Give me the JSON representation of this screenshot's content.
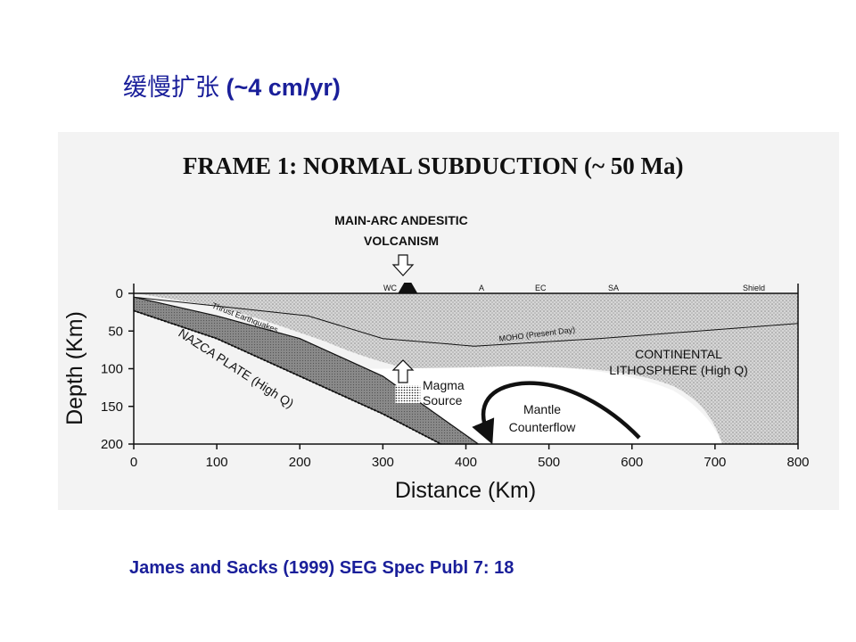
{
  "slide": {
    "title_cjk": "缓慢扩张",
    "title_rate": "(~4 cm/yr)",
    "citation": "James and Sacks (1999) SEG Spec Publ 7: 18",
    "text_color": "#1a1f9a"
  },
  "figure": {
    "frame_title": "FRAME 1:  NORMAL SUBDUCTION (~ 50 Ma)",
    "volcanism_line1": "MAIN-ARC ANDESITIC",
    "volcanism_line2": "VOLCANISM",
    "surface_labels": [
      "WC",
      "A",
      "EC",
      "SA",
      "Shield"
    ],
    "thrust_label": "Thrust Earthquakes",
    "plate_label": "NAZCA PLATE (High Q)",
    "moho_label": "MOHO (Present Day)",
    "lithosphere_line1": "CONTINENTAL",
    "lithosphere_line2": "LITHOSPHERE (High Q)",
    "magma_line1": "Magma",
    "magma_line2": "Source",
    "mantle_line1": "Mantle",
    "mantle_line2": "Counterflow",
    "y_axis_title": "Depth (Km)",
    "x_axis_title": "Distance (Km)",
    "y_ticks": [
      0,
      50,
      100,
      150,
      200
    ],
    "x_ticks": [
      0,
      100,
      200,
      300,
      400,
      500,
      600,
      700,
      800
    ],
    "x_range_km": [
      0,
      800
    ],
    "y_range_km": [
      0,
      200
    ],
    "slab_top_km": [
      [
        0,
        5
      ],
      [
        100,
        30
      ],
      [
        200,
        60
      ],
      [
        300,
        110
      ],
      [
        415,
        200
      ]
    ],
    "slab_bottom_km": [
      [
        0,
        23
      ],
      [
        100,
        60
      ],
      [
        200,
        110
      ],
      [
        300,
        160
      ],
      [
        370,
        200
      ]
    ],
    "moho_km": [
      [
        0,
        5
      ],
      [
        210,
        30
      ],
      [
        300,
        60
      ],
      [
        410,
        70
      ],
      [
        560,
        60
      ],
      [
        800,
        40
      ]
    ],
    "arc_volcano_km": 330,
    "magma_source_km": [
      315,
      345
    ],
    "colors": {
      "slab": "#8a8a8a",
      "lithosphere": "#cfcfcf",
      "mantle": "#ffffff",
      "ink": "#111111"
    }
  }
}
